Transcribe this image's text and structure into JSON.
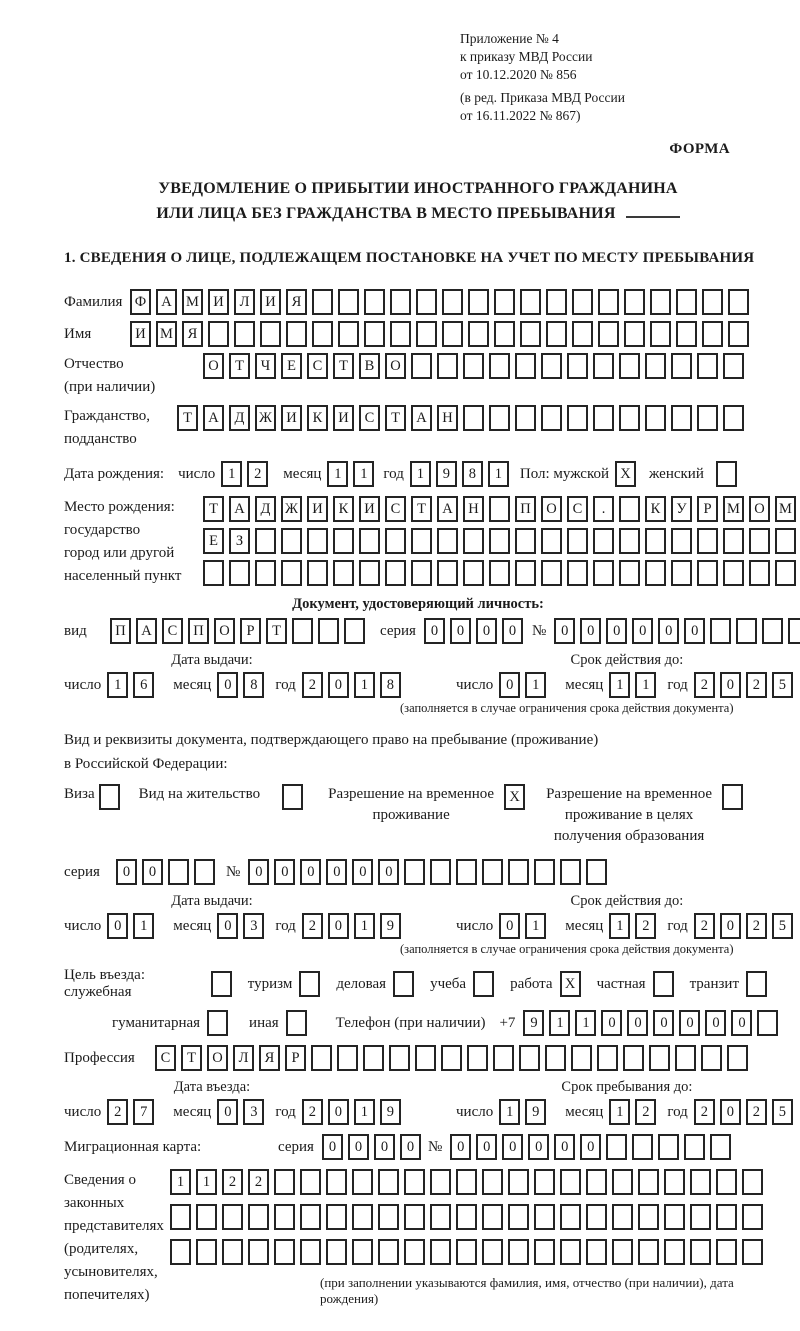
{
  "header": {
    "ref_line1": "Приложение № 4",
    "ref_line2": "к приказу МВД России",
    "ref_line3": "от 10.12.2020 № 856",
    "ed_line1": "(в ред. Приказа МВД России",
    "ed_line2": "от 16.11.2022 № 867)",
    "forma": "ФОРМА"
  },
  "title": {
    "line1": "УВЕДОМЛЕНИЕ О ПРИБЫТИИ ИНОСТРАННОГО ГРАЖДАНИНА",
    "line2": "ИЛИ ЛИЦА БЕЗ ГРАЖДАНСТВА В МЕСТО ПРЕБЫВАНИЯ"
  },
  "section1_title": "1. СВЕДЕНИЯ О ЛИЦЕ, ПОДЛЕЖАЩЕМ ПОСТАНОВКЕ НА УЧЕТ ПО МЕСТУ ПРЕБЫВАНИЯ",
  "surname": {
    "label": "Фамилия",
    "cells": {
      "value": "ФАМИЛИЯ",
      "len": 24
    }
  },
  "firstname": {
    "label": "Имя",
    "cells": {
      "value": "ИМЯ",
      "len": 24
    }
  },
  "patronymic": {
    "label_line1": "Отчество",
    "label_line2": "(при наличии)",
    "cells": {
      "value": "ОТЧЕСТВО",
      "len": 21
    }
  },
  "citizenship": {
    "label_line1": "Гражданство,",
    "label_line2": "подданство",
    "cells": {
      "value": "ТАДЖИКИСТАН",
      "len": 22
    }
  },
  "birth": {
    "label": "Дата рождения:",
    "day_label": "число",
    "day": {
      "value": "12",
      "len": 2
    },
    "month_label": "месяц",
    "month": {
      "value": "11",
      "len": 2
    },
    "year_label": "год",
    "year": {
      "value": "1981",
      "len": 4
    },
    "gender_label": "Пол: мужской",
    "male": {
      "value": "X",
      "len": 1
    },
    "female_label": "женский",
    "female": {
      "value": "",
      "len": 1
    }
  },
  "birthplace": {
    "label1": "Место рождения:",
    "label2": "государство",
    "label3": "город или другой",
    "label4": "населенный пункт",
    "row1": {
      "value": "ТАДЖИКИСТАН ПОС. КУРМОМБ",
      "len": 24
    },
    "row2": {
      "value": "ЕЗ",
      "len": 24
    },
    "row3": {
      "value": "",
      "len": 24
    }
  },
  "id_doc": {
    "title": "Документ, удостоверяющий личность:",
    "kind_label": "вид",
    "kind": {
      "value": "ПАСПОРТ",
      "len": 10
    },
    "series_label": "серия",
    "series": {
      "value": "0000",
      "len": 4
    },
    "number_label": "№",
    "number": {
      "value": "000000",
      "len": 11
    },
    "issue_title": "Дата выдачи:",
    "issue_day_label": "число",
    "issue_day": {
      "value": "16",
      "len": 2
    },
    "issue_month_label": "месяц",
    "issue_month": {
      "value": "08",
      "len": 2
    },
    "issue_year_label": "год",
    "issue_year": {
      "value": "2018",
      "len": 4
    },
    "expiry_title": "Срок действия до:",
    "expiry_day_label": "число",
    "expiry_day": {
      "value": "01",
      "len": 2
    },
    "expiry_month_label": "месяц",
    "expiry_month": {
      "value": "11",
      "len": 2
    },
    "expiry_year_label": "год",
    "expiry_year": {
      "value": "2025",
      "len": 4
    },
    "expiry_note": "(заполняется в случае ограничения срока действия документа)"
  },
  "residence_doc": {
    "intro_line1": "Вид и реквизиты документа, подтверждающего право на пребывание (проживание)",
    "intro_line2": "в Российской Федерации:",
    "visa_label": "Виза",
    "visa_box": {
      "value": "",
      "len": 1
    },
    "vnzh_label": "Вид на жительство",
    "vnzh_box": {
      "value": "",
      "len": 1
    },
    "rvp_line1": "Разрешение на временное",
    "rvp_line2": "проживание",
    "rvp_box": {
      "value": "X",
      "len": 1
    },
    "rvp_edu_line1": "Разрешение на временное",
    "rvp_edu_line2": "проживание в целях",
    "rvp_edu_line3": "получения образования",
    "rvp_edu_box": {
      "value": "",
      "len": 1
    },
    "series_label": "серия",
    "series": {
      "value": "00",
      "len": 4
    },
    "number_label": "№",
    "number": {
      "value": "000000",
      "len": 14
    },
    "issue_title": "Дата выдачи:",
    "issue_day_label": "число",
    "issue_day": {
      "value": "01",
      "len": 2
    },
    "issue_month_label": "месяц",
    "issue_month": {
      "value": "03",
      "len": 2
    },
    "issue_year_label": "год",
    "issue_year": {
      "value": "2019",
      "len": 4
    },
    "expiry_title": "Срок действия до:",
    "expiry_day_label": "число",
    "expiry_day": {
      "value": "01",
      "len": 2
    },
    "expiry_month_label": "месяц",
    "expiry_month": {
      "value": "12",
      "len": 2
    },
    "expiry_year_label": "год",
    "expiry_year": {
      "value": "2025",
      "len": 4
    },
    "expiry_note": "(заполняется в случае ограничения срока действия документа)"
  },
  "purpose": {
    "label": "Цель въезда: служебная",
    "official_box": {
      "value": "",
      "len": 1
    },
    "tourism_label": "туризм",
    "tourism_box": {
      "value": "",
      "len": 1
    },
    "business_label": "деловая",
    "business_box": {
      "value": "",
      "len": 1
    },
    "study_label": "учеба",
    "study_box": {
      "value": "",
      "len": 1
    },
    "work_label": "работа",
    "work_box": {
      "value": "X",
      "len": 1
    },
    "private_label": "частная",
    "private_box": {
      "value": "",
      "len": 1
    },
    "transit_label": "транзит",
    "transit_box": {
      "value": "",
      "len": 1
    },
    "humanitarian_label": "гуманитарная",
    "humanitarian_box": {
      "value": "",
      "len": 1
    },
    "other_label": "иная",
    "other_box": {
      "value": "",
      "len": 1
    },
    "phone_label": "Телефон (при наличии)",
    "phone_prefix": "+7",
    "phone": {
      "value": "911000000",
      "len": 10
    }
  },
  "profession": {
    "label": "Профессия",
    "cells": {
      "value": "СТОЛЯР",
      "len": 23
    }
  },
  "entry": {
    "date_title": "Дата въезда:",
    "day_label": "число",
    "day": {
      "value": "27",
      "len": 2
    },
    "month_label": "месяц",
    "month": {
      "value": "03",
      "len": 2
    },
    "year_label": "год",
    "year": {
      "value": "2019",
      "len": 4
    },
    "stay_title": "Срок пребывания до:",
    "stay_day_label": "число",
    "stay_day": {
      "value": "19",
      "len": 2
    },
    "stay_month_label": "месяц",
    "stay_month": {
      "value": "12",
      "len": 2
    },
    "stay_year_label": "год",
    "stay_year": {
      "value": "2025",
      "len": 4
    }
  },
  "migration_card": {
    "label": "Миграционная карта:",
    "series_label": "серия",
    "series": {
      "value": "0000",
      "len": 4
    },
    "number_label": "№",
    "number": {
      "value": "000000",
      "len": 11
    }
  },
  "representatives": {
    "label_line1": "Сведения о",
    "label_line2": "законных",
    "label_line3": "представителях",
    "label_line4": "(родителях,",
    "label_line5": "усыновителях,",
    "label_line6": "попечителях)",
    "row1": {
      "value": "1122",
      "len": 23
    },
    "row2": {
      "value": "",
      "len": 23
    },
    "row3": {
      "value": "",
      "len": 23
    },
    "note": "(при заполнении указываются фамилия, имя, отчество (при наличии), дата рождения)"
  }
}
